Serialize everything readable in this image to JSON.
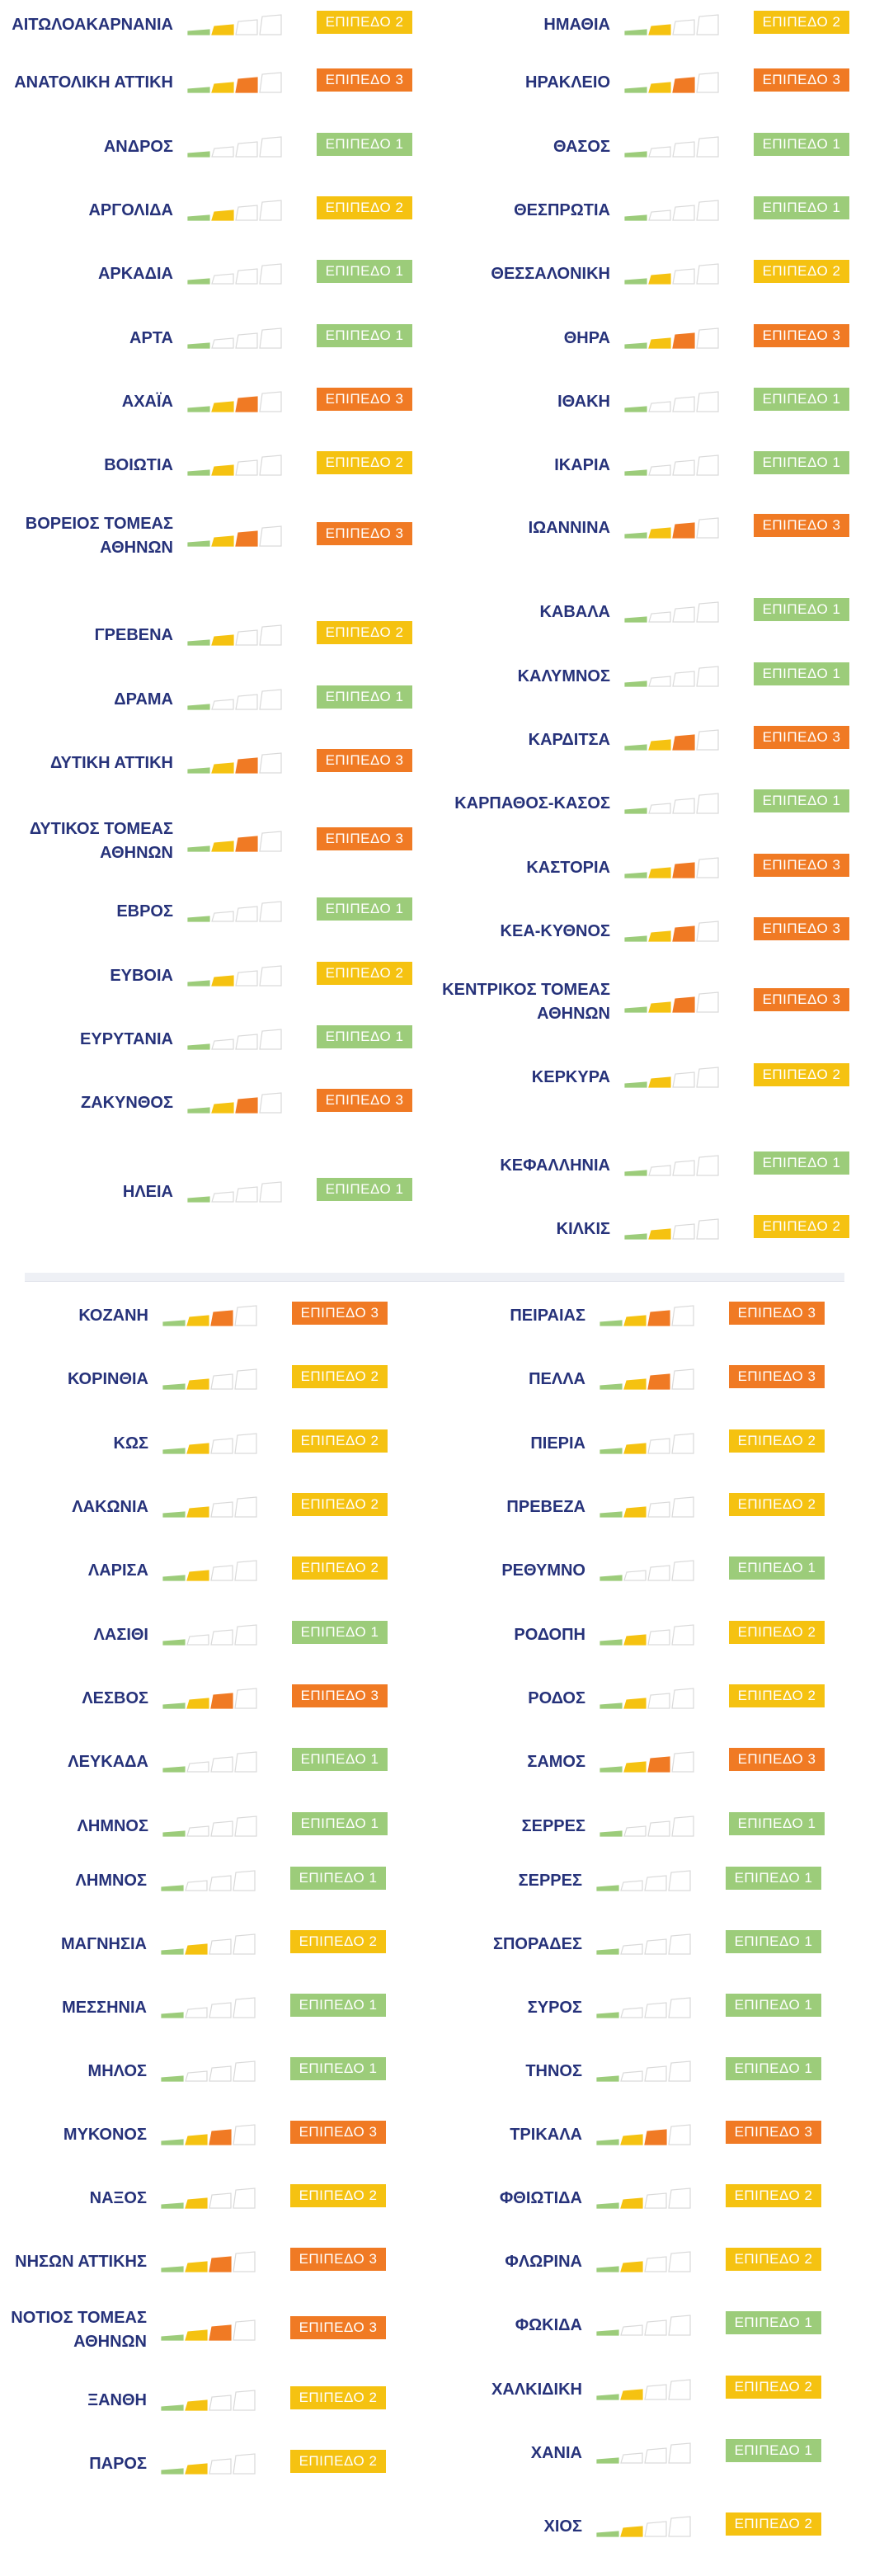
{
  "colors": {
    "level1": "#9ccc7a",
    "level2": "#f5c211",
    "level3": "#f07a24",
    "empty_outline": "#d9d9d9",
    "name": "#26327a"
  },
  "sections": [
    {
      "left": [
        {
          "name": "ΑΙΤΩΛΟΑΚΑΡΝΑΝΙΑ",
          "level": 2,
          "badge": "ΕΠΙΠΕΔΟ 2"
        },
        {
          "name": "ΑΝΑΤΟΛΙΚΗ ΑΤΤΙΚΗ",
          "level": 3,
          "badge": "ΕΠΙΠΕΔΟ 3"
        },
        {
          "name": "ΑΝΔΡΟΣ",
          "level": 1,
          "badge": "ΕΠΙΠΕΔΟ 1"
        },
        {
          "name": "ΑΡΓΟΛΙΔΑ",
          "level": 2,
          "badge": "ΕΠΙΠΕΔΟ 2"
        },
        {
          "name": "ΑΡΚΑΔΙΑ",
          "level": 1,
          "badge": "ΕΠΙΠΕΔΟ 1"
        },
        {
          "name": "ΑΡΤΑ",
          "level": 1,
          "badge": "ΕΠΙΠΕΔΟ 1"
        },
        {
          "name": "ΑΧΑΪΑ",
          "level": 3,
          "badge": "ΕΠΙΠΕΔΟ 3"
        },
        {
          "name": "ΒΟΙΩΤΙΑ",
          "level": 2,
          "badge": "ΕΠΙΠΕΔΟ 2"
        },
        {
          "name": "ΒΟΡΕΙΟΣ ΤΟΜΕΑΣ\nΑΘΗΝΩΝ",
          "level": 3,
          "badge": "ΕΠΙΠΕΔΟ 3"
        },
        {
          "name": "ΓΡΕΒΕΝΑ",
          "level": 2,
          "badge": "ΕΠΙΠΕΔΟ 2"
        },
        {
          "name": "ΔΡΑΜΑ",
          "level": 1,
          "badge": "ΕΠΙΠΕΔΟ 1"
        },
        {
          "name": "ΔΥΤΙΚΗ ΑΤΤΙΚΗ",
          "level": 3,
          "badge": "ΕΠΙΠΕΔΟ 3"
        },
        {
          "name": "ΔΥΤΙΚΟΣ ΤΟΜΕΑΣ\nΑΘΗΝΩΝ",
          "level": 3,
          "badge": "ΕΠΙΠΕΔΟ 3"
        },
        {
          "name": "ΕΒΡΟΣ",
          "level": 1,
          "badge": "ΕΠΙΠΕΔΟ 1"
        },
        {
          "name": "ΕΥΒΟΙΑ",
          "level": 2,
          "badge": "ΕΠΙΠΕΔΟ 2"
        },
        {
          "name": "ΕΥΡΥΤΑΝΙΑ",
          "level": 1,
          "badge": "ΕΠΙΠΕΔΟ 1"
        },
        {
          "name": "ΖΑΚΥΝΘΟΣ",
          "level": 3,
          "badge": "ΕΠΙΠΕΔΟ 3"
        },
        {
          "name": "ΗΛΕΙΑ",
          "level": 1,
          "badge": "ΕΠΙΠΕΔΟ 1"
        }
      ],
      "right": [
        {
          "name": "ΗΜΑΘΙΑ",
          "level": 2,
          "badge": "ΕΠΙΠΕΔΟ 2"
        },
        {
          "name": "ΗΡΑΚΛΕΙΟ",
          "level": 3,
          "badge": "ΕΠΙΠΕΔΟ 3"
        },
        {
          "name": "ΘΑΣΟΣ",
          "level": 1,
          "badge": "ΕΠΙΠΕΔΟ 1"
        },
        {
          "name": "ΘΕΣΠΡΩΤΙΑ",
          "level": 1,
          "badge": "ΕΠΙΠΕΔΟ 1"
        },
        {
          "name": "ΘΕΣΣΑΛΟΝΙΚΗ",
          "level": 2,
          "badge": "ΕΠΙΠΕΔΟ 2"
        },
        {
          "name": "ΘΗΡΑ",
          "level": 3,
          "badge": "ΕΠΙΠΕΔΟ 3"
        },
        {
          "name": "ΙΘΑΚΗ",
          "level": 1,
          "badge": "ΕΠΙΠΕΔΟ 1"
        },
        {
          "name": "ΙΚΑΡΙΑ",
          "level": 1,
          "badge": "ΕΠΙΠΕΔΟ 1"
        },
        {
          "name": "ΙΩΑΝΝΙΝΑ",
          "level": 3,
          "badge": "ΕΠΙΠΕΔΟ 3"
        },
        {
          "name": "ΚΑΒΑΛΑ",
          "level": 1,
          "badge": "ΕΠΙΠΕΔΟ 1"
        },
        {
          "name": "ΚΑΛΥΜΝΟΣ",
          "level": 1,
          "badge": "ΕΠΙΠΕΔΟ 1"
        },
        {
          "name": "ΚΑΡΔΙΤΣΑ",
          "level": 3,
          "badge": "ΕΠΙΠΕΔΟ 3"
        },
        {
          "name": "ΚΑΡΠΑΘΟΣ-ΚΑΣΟΣ",
          "level": 1,
          "badge": "ΕΠΙΠΕΔΟ 1"
        },
        {
          "name": "ΚΑΣΤΟΡΙΑ",
          "level": 3,
          "badge": "ΕΠΙΠΕΔΟ 3"
        },
        {
          "name": "ΚΕΑ-ΚΥΘΝΟΣ",
          "level": 3,
          "badge": "ΕΠΙΠΕΔΟ 3"
        },
        {
          "name": "ΚΕΝΤΡΙΚΟΣ ΤΟΜΕΑΣ\nΑΘΗΝΩΝ",
          "level": 3,
          "badge": "ΕΠΙΠΕΔΟ 3"
        },
        {
          "name": "ΚΕΡΚΥΡΑ",
          "level": 2,
          "badge": "ΕΠΙΠΕΔΟ 2"
        },
        {
          "name": "ΚΕΦΑΛΛΗΝΙΑ",
          "level": 1,
          "badge": "ΕΠΙΠΕΔΟ 1"
        },
        {
          "name": "ΚΙΛΚΙΣ",
          "level": 2,
          "badge": "ΕΠΙΠΕΔΟ 2"
        }
      ]
    },
    {
      "left": [
        {
          "name": "ΚΟΖΑΝΗ",
          "level": 3,
          "badge": "ΕΠΙΠΕΔΟ 3"
        },
        {
          "name": "ΚΟΡΙΝΘΙΑ",
          "level": 2,
          "badge": "ΕΠΙΠΕΔΟ 2"
        },
        {
          "name": "ΚΩΣ",
          "level": 2,
          "badge": "ΕΠΙΠΕΔΟ 2"
        },
        {
          "name": "ΛΑΚΩΝΙΑ",
          "level": 2,
          "badge": "ΕΠΙΠΕΔΟ 2"
        },
        {
          "name": "ΛΑΡΙΣΑ",
          "level": 2,
          "badge": "ΕΠΙΠΕΔΟ 2"
        },
        {
          "name": "ΛΑΣΙΘΙ",
          "level": 1,
          "badge": "ΕΠΙΠΕΔΟ 1"
        },
        {
          "name": "ΛΕΣΒΟΣ",
          "level": 3,
          "badge": "ΕΠΙΠΕΔΟ 3"
        },
        {
          "name": "ΛΕΥΚΑΔΑ",
          "level": 1,
          "badge": "ΕΠΙΠΕΔΟ 1"
        },
        {
          "name": "ΛΗΜΝΟΣ",
          "level": 1,
          "badge": "ΕΠΙΠΕΔΟ 1"
        }
      ],
      "right": [
        {
          "name": "ΠΕΙΡΑΙΑΣ",
          "level": 3,
          "badge": "ΕΠΙΠΕΔΟ 3"
        },
        {
          "name": "ΠΕΛΛΑ",
          "level": 3,
          "badge": "ΕΠΙΠΕΔΟ 3"
        },
        {
          "name": "ΠΙΕΡΙΑ",
          "level": 2,
          "badge": "ΕΠΙΠΕΔΟ 2"
        },
        {
          "name": "ΠΡΕΒΕΖΑ",
          "level": 2,
          "badge": "ΕΠΙΠΕΔΟ 2"
        },
        {
          "name": "ΡΕΘΥΜΝΟ",
          "level": 1,
          "badge": "ΕΠΙΠΕΔΟ 1"
        },
        {
          "name": "ΡΟΔΟΠΗ",
          "level": 2,
          "badge": "ΕΠΙΠΕΔΟ 2"
        },
        {
          "name": "ΡΟΔΟΣ",
          "level": 2,
          "badge": "ΕΠΙΠΕΔΟ 2"
        },
        {
          "name": "ΣΑΜΟΣ",
          "level": 3,
          "badge": "ΕΠΙΠΕΔΟ 3"
        },
        {
          "name": "ΣΕΡΡΕΣ",
          "level": 1,
          "badge": "ΕΠΙΠΕΔΟ 1"
        }
      ]
    },
    {
      "left": [
        {
          "name": "ΛΗΜΝΟΣ",
          "level": 1,
          "badge": "ΕΠΙΠΕΔΟ 1"
        },
        {
          "name": "ΜΑΓΝΗΣΙΑ",
          "level": 2,
          "badge": "ΕΠΙΠΕΔΟ 2"
        },
        {
          "name": "ΜΕΣΣΗΝΙΑ",
          "level": 1,
          "badge": "ΕΠΙΠΕΔΟ 1"
        },
        {
          "name": "ΜΗΛΟΣ",
          "level": 1,
          "badge": "ΕΠΙΠΕΔΟ 1"
        },
        {
          "name": "ΜΥΚΟΝΟΣ",
          "level": 3,
          "badge": "ΕΠΙΠΕΔΟ 3"
        },
        {
          "name": "ΝΑΞΟΣ",
          "level": 2,
          "badge": "ΕΠΙΠΕΔΟ 2"
        },
        {
          "name": "ΝΗΣΩΝ ΑΤΤΙΚΗΣ",
          "level": 3,
          "badge": "ΕΠΙΠΕΔΟ 3"
        },
        {
          "name": "ΝΟΤΙΟΣ ΤΟΜΕΑΣ\nΑΘΗΝΩΝ",
          "level": 3,
          "badge": "ΕΠΙΠΕΔΟ 3"
        },
        {
          "name": "ΞΑΝΘΗ",
          "level": 2,
          "badge": "ΕΠΙΠΕΔΟ 2"
        },
        {
          "name": "ΠΑΡΟΣ",
          "level": 2,
          "badge": "ΕΠΙΠΕΔΟ 2"
        }
      ],
      "right": [
        {
          "name": "ΣΕΡΡΕΣ",
          "level": 1,
          "badge": "ΕΠΙΠΕΔΟ 1"
        },
        {
          "name": "ΣΠΟΡΑΔΕΣ",
          "level": 1,
          "badge": "ΕΠΙΠΕΔΟ 1"
        },
        {
          "name": "ΣΥΡΟΣ",
          "level": 1,
          "badge": "ΕΠΙΠΕΔΟ 1"
        },
        {
          "name": "ΤΗΝΟΣ",
          "level": 1,
          "badge": "ΕΠΙΠΕΔΟ 1"
        },
        {
          "name": "ΤΡΙΚΑΛΑ",
          "level": 3,
          "badge": "ΕΠΙΠΕΔΟ 3"
        },
        {
          "name": "ΦΘΙΩΤΙΔΑ",
          "level": 2,
          "badge": "ΕΠΙΠΕΔΟ 2"
        },
        {
          "name": "ΦΛΩΡΙΝΑ",
          "level": 2,
          "badge": "ΕΠΙΠΕΔΟ 2"
        },
        {
          "name": "ΦΩΚΙΔΑ",
          "level": 1,
          "badge": "ΕΠΙΠΕΔΟ 1"
        },
        {
          "name": "ΧΑΛΚΙΔΙΚΗ",
          "level": 2,
          "badge": "ΕΠΙΠΕΔΟ 2"
        },
        {
          "name": "ΧΑΝΙΑ",
          "level": 1,
          "badge": "ΕΠΙΠΕΔΟ 1"
        },
        {
          "name": "ΧΙΟΣ",
          "level": 2,
          "badge": "ΕΠΙΠΕΔΟ 2"
        }
      ]
    }
  ]
}
